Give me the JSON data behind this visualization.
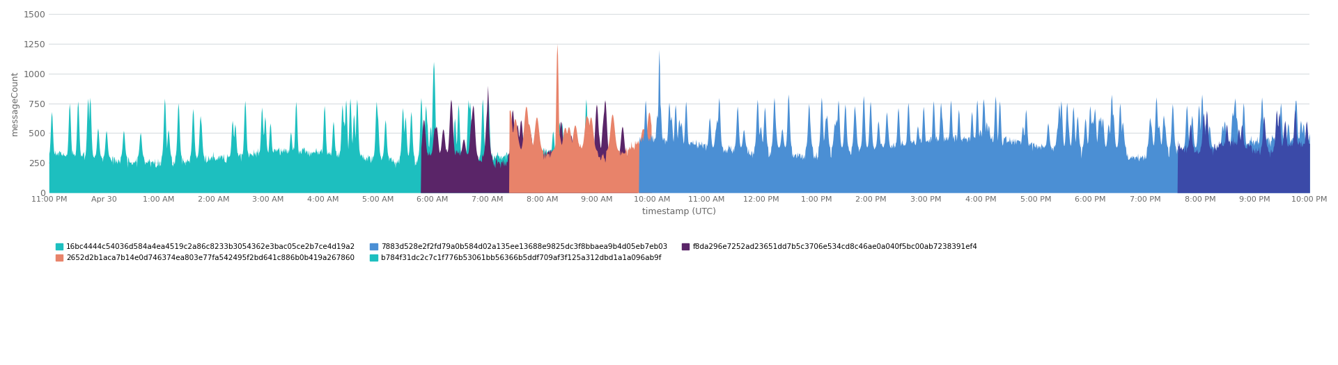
{
  "title": "",
  "xlabel": "timestamp (UTC)",
  "ylabel": "messageCount",
  "ylim": [
    0,
    1500
  ],
  "yticks": [
    0,
    250,
    500,
    750,
    1000,
    1250,
    1500
  ],
  "background_color": "#ffffff",
  "grid_color": "#d8dce0",
  "teal_color": "#1dbfbf",
  "purple_color": "#5a2568",
  "salmon_color": "#e8836a",
  "blue_color": "#4b8fd4",
  "darkblue_color": "#3b4aa8",
  "x_tick_labels": [
    "11:00 PM",
    "Apr 30",
    "1:00 AM",
    "2:00 AM",
    "3:00 AM",
    "4:00 AM",
    "5:00 AM",
    "6:00 AM",
    "7:00 AM",
    "8:00 AM",
    "9:00 AM",
    "10:00 AM",
    "11:00 AM",
    "12:00 PM",
    "1:00 PM",
    "2:00 PM",
    "3:00 PM",
    "4:00 PM",
    "5:00 PM",
    "6:00 PM",
    "7:00 PM",
    "8:00 PM",
    "9:00 PM",
    "10:00 PM"
  ],
  "legend_entries": [
    {
      "label": "16bc4444c54036d584a4ea4519c2a86c8233b3054362e3bac05ce2b7ce4d19a2",
      "color": "#1dbfbf"
    },
    {
      "label": "2652d2b1aca7b14e0d746374ea803e77fa542495f2bd641c886b0b419a267860",
      "color": "#e8836a"
    },
    {
      "label": "7883d528e2f2fd79a0b584d02a135ee13688e9825dc3f8bbaea9b4d05eb7eb03",
      "color": "#4b8fd4"
    },
    {
      "label": "b784f31dc2c7c1f776b53061bb56366b5ddf709af3f125a312dbd1a1a096ab9f",
      "color": "#1dbfbf"
    },
    {
      "label": "f8da296e7252ad23651dd7b5c3706e534cd8c46ae0a040f5bc00ab7238391ef4",
      "color": "#5a2568"
    }
  ]
}
